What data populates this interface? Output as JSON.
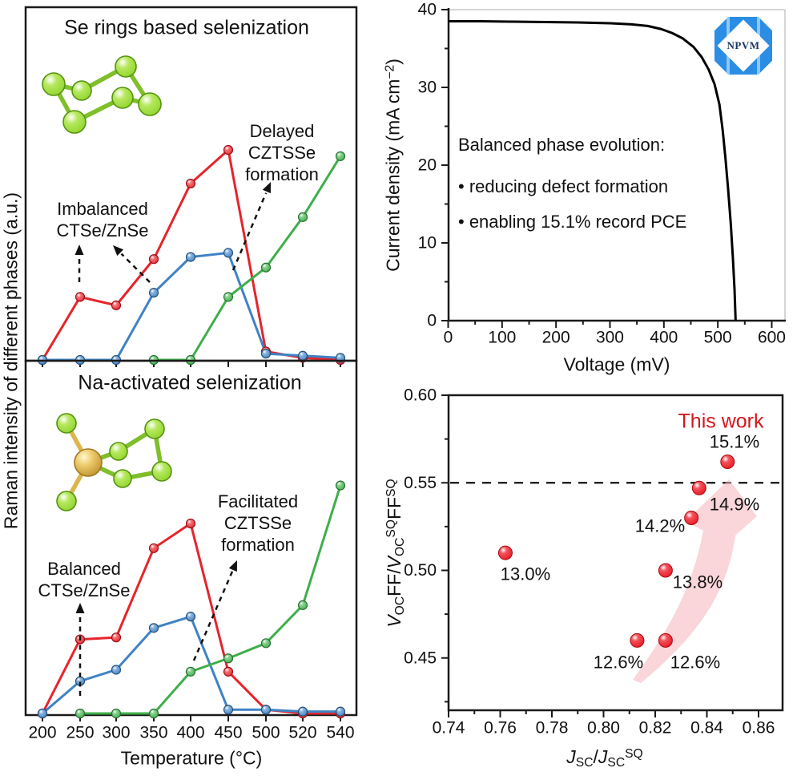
{
  "colors": {
    "red": "#e6242b",
    "blue": "#3f83c4",
    "green": "#3fae4a",
    "curve_black": "#000000",
    "ball_red": "#e81420",
    "this_work_red": "#d4161e",
    "trend_arrow_pink": "#f6b3ba",
    "molecule_green": "#8ed32a",
    "molecule_gold": "#dcb54c",
    "logo_blue": "#2b8de4",
    "logo_stripe": "#8ec9f5",
    "logo_text_color": "#16355f",
    "axis_gray": "#c9c9c9",
    "axis_black": "#1a1a1a"
  },
  "logo": {
    "text": "NPVM"
  },
  "chart_data": [
    {
      "id": "raman-se-rings",
      "type": "line",
      "title": "Se rings based selenization",
      "ylabel": "Raman intensity of different phases (a.u.)",
      "categories": [
        "200",
        "250",
        "300",
        "350",
        "400",
        "450",
        "500",
        "520",
        "540"
      ],
      "series": [
        {
          "name": "CTSe",
          "color": "#e6242b",
          "values": [
            0,
            30,
            26,
            48,
            84,
            100,
            4,
            1,
            0
          ]
        },
        {
          "name": "ZnSe",
          "color": "#3f83c4",
          "values": [
            0,
            0,
            0,
            32,
            49,
            51,
            3,
            2,
            1
          ]
        },
        {
          "name": "CZTSSe",
          "color": "#3fae4a",
          "values": [
            null,
            null,
            null,
            0,
            0,
            30,
            44,
            68,
            97
          ]
        }
      ],
      "annotations": [
        {
          "lines": [
            "Imbalanced",
            "CTSe/ZnSe"
          ]
        },
        {
          "lines": [
            "Delayed",
            "CZTSSe",
            "formation"
          ]
        }
      ]
    },
    {
      "id": "raman-na-activated",
      "type": "line",
      "title": "Na-activated selenization",
      "xlabel": "Temperature (°C)",
      "categories": [
        "200",
        "250",
        "300",
        "350",
        "400",
        "450",
        "500",
        "520",
        "540"
      ],
      "series": [
        {
          "name": "CTSe",
          "color": "#e6242b",
          "values": [
            0,
            39,
            40,
            87,
            100,
            22,
            2,
            0,
            0
          ]
        },
        {
          "name": "ZnSe",
          "color": "#3f83c4",
          "values": [
            0,
            17,
            23,
            45,
            51,
            2,
            2,
            1,
            1
          ]
        },
        {
          "name": "CZTSSe",
          "color": "#3fae4a",
          "values": [
            null,
            0,
            0,
            0,
            22,
            29,
            37,
            57,
            120
          ]
        }
      ],
      "annotations": [
        {
          "lines": [
            "Balanced",
            "CTSe/ZnSe"
          ]
        },
        {
          "lines": [
            "Facilitated",
            "CZTSSe",
            "formation"
          ]
        }
      ]
    },
    {
      "id": "jv-curve",
      "type": "line",
      "xlabel": "Voltage (mV)",
      "ylabel_parts": {
        "pre": "Current density (mA cm",
        "sup": "−2",
        "post": ")"
      },
      "xticks": [
        "0",
        "100",
        "200",
        "300",
        "400",
        "500",
        "600"
      ],
      "yticks": [
        "0",
        "10",
        "20",
        "30",
        "40"
      ],
      "xlim": [
        0,
        625
      ],
      "ylim": [
        0,
        40
      ],
      "voc_mv": 533,
      "jsc_ma_cm2": 38.5,
      "curve_points": [
        [
          0,
          38.5
        ],
        [
          60,
          38.5
        ],
        [
          120,
          38.45
        ],
        [
          180,
          38.4
        ],
        [
          240,
          38.35
        ],
        [
          300,
          38.25
        ],
        [
          340,
          38.1
        ],
        [
          370,
          37.9
        ],
        [
          395,
          37.5
        ],
        [
          415,
          37.0
        ],
        [
          435,
          36.3
        ],
        [
          455,
          35.2
        ],
        [
          470,
          33.9
        ],
        [
          483,
          32.3
        ],
        [
          494,
          30.4
        ],
        [
          503,
          27.8
        ],
        [
          509,
          24.5
        ],
        [
          514,
          21.0
        ],
        [
          519,
          17.0
        ],
        [
          524,
          12.5
        ],
        [
          528,
          8.0
        ],
        [
          531,
          4.0
        ],
        [
          533,
          0
        ]
      ],
      "note": {
        "title": "Balanced phase evolution:",
        "bullets": [
          "• reducing defect formation",
          "• enabling 15.1% record PCE"
        ]
      }
    },
    {
      "id": "pce-scatter",
      "type": "scatter",
      "xlabel_parts": {
        "j1": "J",
        "sub1": "SC",
        "slash": "/",
        "j2": "J",
        "sub2": "SC",
        "sup": "SQ"
      },
      "ylabel_parts": {
        "v1": "V",
        "sub1": "OC",
        "ff1": "FF",
        "slash": "/",
        "v2": "V",
        "sub2": "OC",
        "sup1": "SQ",
        "ff2": "FF",
        "sup2": "SQ"
      },
      "xticks": [
        "0.74",
        "0.76",
        "0.78",
        "0.80",
        "0.82",
        "0.84",
        "0.86"
      ],
      "yticks": [
        "0.60",
        "0.55",
        "0.50",
        "0.45"
      ],
      "xlim": [
        0.74,
        0.869
      ],
      "ylim": [
        0.42,
        0.6
      ],
      "dashed_line_y": 0.55,
      "annotation": "This work",
      "points": [
        {
          "label": "13.0%",
          "x": 0.762,
          "y": 0.51
        },
        {
          "label": "12.6%",
          "x": 0.813,
          "y": 0.46
        },
        {
          "label": "12.6%",
          "x": 0.824,
          "y": 0.46
        },
        {
          "label": "13.8%",
          "x": 0.824,
          "y": 0.5
        },
        {
          "label": "14.2%",
          "x": 0.834,
          "y": 0.53
        },
        {
          "label": "14.9%",
          "x": 0.837,
          "y": 0.547
        },
        {
          "label": "15.1%",
          "x": 0.848,
          "y": 0.562
        }
      ]
    }
  ]
}
